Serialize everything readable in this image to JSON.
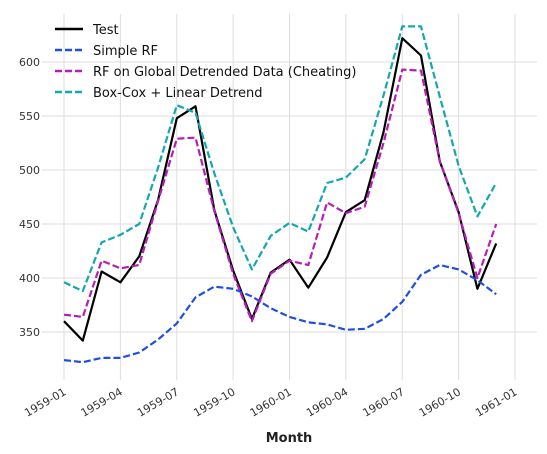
{
  "chart_data": {
    "type": "line",
    "title": "",
    "xlabel": "Month",
    "ylabel": "",
    "x": [
      "1959-01",
      "1959-02",
      "1959-03",
      "1959-04",
      "1959-05",
      "1959-06",
      "1959-07",
      "1959-08",
      "1959-09",
      "1959-10",
      "1959-11",
      "1959-12",
      "1960-01",
      "1960-02",
      "1960-03",
      "1960-04",
      "1960-05",
      "1960-06",
      "1960-07",
      "1960-08",
      "1960-09",
      "1960-10",
      "1960-11",
      "1960-12"
    ],
    "x_ticks": [
      "1959-01",
      "1959-04",
      "1959-07",
      "1959-10",
      "1960-01",
      "1960-04",
      "1960-07",
      "1960-10",
      "1961-01"
    ],
    "y_ticks": [
      350,
      400,
      450,
      500,
      550,
      600
    ],
    "xlim": [
      "1959-01",
      "1961-01"
    ],
    "ylim": [
      310,
      640
    ],
    "grid": true,
    "legend_position": "top-left",
    "series": [
      {
        "name": "Test",
        "color": "#000000",
        "dash": "solid",
        "values": [
          360,
          342,
          406,
          396,
          420,
          472,
          548,
          559,
          463,
          407,
          362,
          405,
          417,
          391,
          419,
          461,
          472,
          535,
          622,
          606,
          508,
          461,
          390,
          432
        ]
      },
      {
        "name": "Simple RF",
        "color": "#1f4fe0",
        "dash": "dashed",
        "values": [
          324,
          322,
          326,
          326,
          331,
          343,
          358,
          382,
          392,
          390,
          383,
          372,
          364,
          359,
          357,
          352,
          353,
          362,
          378,
          403,
          412,
          408,
          398,
          385
        ]
      },
      {
        "name": "RF on Global Detrended Data (Cheating)",
        "color": "#b61eb6",
        "dash": "dashed",
        "values": [
          366,
          364,
          416,
          409,
          412,
          471,
          529,
          530,
          462,
          404,
          360,
          404,
          416,
          412,
          470,
          460,
          466,
          525,
          593,
          592,
          508,
          460,
          400,
          450
        ]
      },
      {
        "name": "Box-Cox + Linear Detrend",
        "color": "#13a7b0",
        "dash": "dashed",
        "values": [
          396,
          388,
          433,
          440,
          450,
          502,
          560,
          553,
          497,
          447,
          408,
          439,
          451,
          443,
          488,
          493,
          510,
          569,
          633,
          633,
          568,
          504,
          457,
          488
        ]
      }
    ]
  }
}
